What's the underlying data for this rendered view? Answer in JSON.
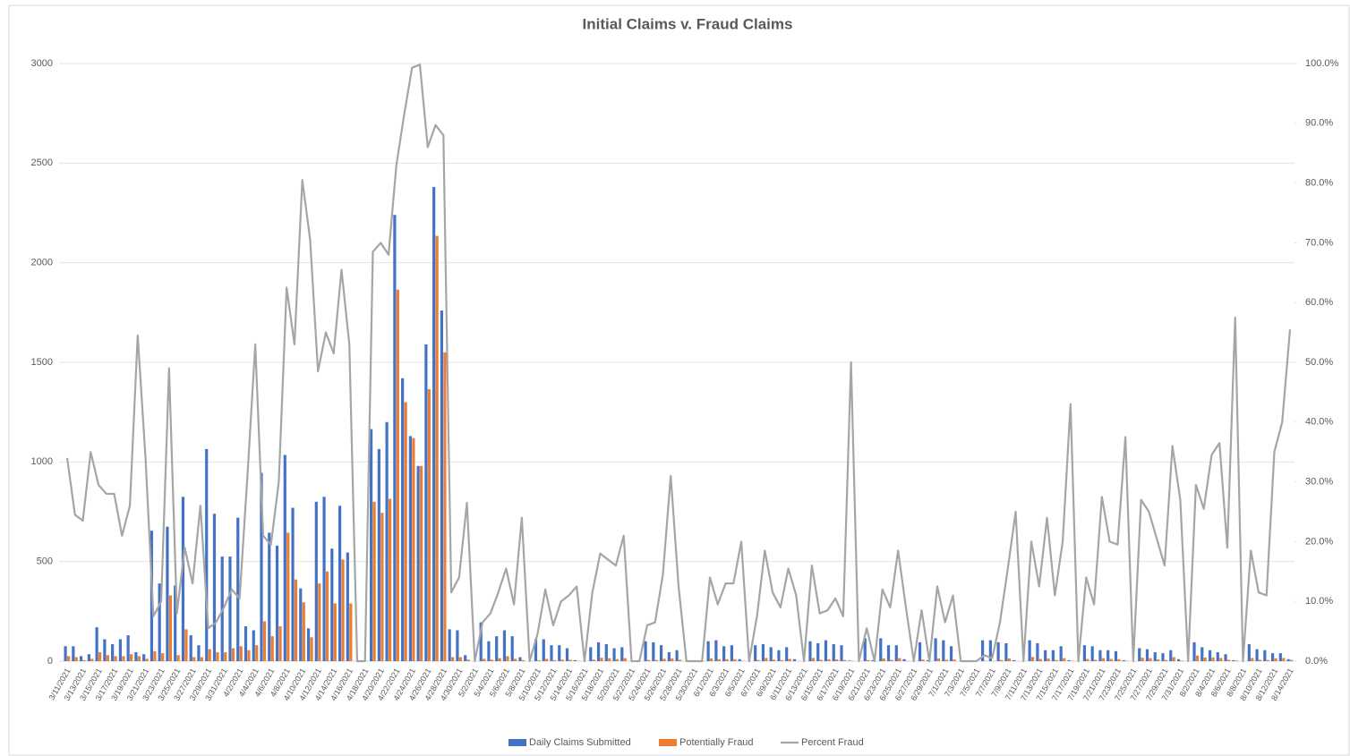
{
  "chart_data": {
    "type": "bar",
    "title": "Initial Claims v. Fraud Claims",
    "categories": [
      "3/11/2021",
      null,
      "3/13/2021",
      null,
      "3/15/2021",
      null,
      "3/17/2021",
      null,
      "3/19/2021",
      null,
      "3/21/2021",
      null,
      "3/23/2021",
      null,
      "3/25/2021",
      null,
      "3/27/2021",
      null,
      "3/29/2021",
      null,
      "3/31/2021",
      null,
      "4/2/2021",
      null,
      "4/4/2021",
      null,
      "4/6/2021",
      null,
      "4/8/2021",
      null,
      "4/10/2021",
      null,
      "4/12/2021",
      null,
      "4/14/2021",
      null,
      "4/16/2021",
      null,
      "4/18/2021",
      null,
      "4/20/2021",
      null,
      "4/22/2021",
      null,
      "4/24/2021",
      null,
      "4/26/2021",
      null,
      "4/28/2021",
      null,
      "4/30/2021",
      null,
      "5/2/2021",
      null,
      "5/4/2021",
      null,
      "5/6/2021",
      null,
      "5/8/2021",
      null,
      "5/10/2021",
      null,
      "5/12/2021",
      null,
      "5/14/2021",
      null,
      "5/16/2021",
      null,
      "5/18/2021",
      null,
      "5/20/2021",
      null,
      "5/22/2021",
      null,
      "5/24/2021",
      null,
      "5/26/2021",
      null,
      "5/28/2021",
      null,
      "5/30/2021",
      null,
      "6/1/2021",
      null,
      "6/3/2021",
      null,
      "6/5/2021",
      null,
      "6/7/2021",
      null,
      "6/9/2021",
      null,
      "6/11/2021",
      null,
      "6/13/2021",
      null,
      "6/15/2021",
      null,
      "6/17/2021",
      null,
      "6/19/2021",
      null,
      "6/21/2021",
      null,
      "6/23/2021",
      null,
      "6/25/2021",
      null,
      "6/27/2021",
      null,
      "6/29/2021",
      null,
      "7/1/2021",
      null,
      "7/3/2021",
      null,
      "7/5/2021",
      null,
      "7/7/2021",
      null,
      "7/9/2021",
      null,
      "7/11/2021",
      null,
      "7/13/2021",
      null,
      "7/15/2021",
      null,
      "7/17/2021",
      null,
      "7/19/2021",
      null,
      "7/21/2021",
      null,
      "7/23/2021",
      null,
      "7/25/2021",
      null,
      "7/27/2021",
      null,
      "7/29/2021",
      null,
      "7/31/2021",
      null,
      "8/2/2021",
      null,
      "8/4/2021",
      null,
      "8/6/2021",
      null,
      "8/8/2021",
      null,
      "8/10/2021",
      null,
      "8/12/2021",
      null,
      "8/14/2021"
    ],
    "series": [
      {
        "name": "Daily Claims Submitted",
        "type": "bar",
        "color": "#4472c4",
        "values": [
          75,
          75,
          25,
          35,
          170,
          110,
          85,
          110,
          130,
          45,
          35,
          655,
          390,
          675,
          380,
          825,
          130,
          80,
          1065,
          740,
          525,
          525,
          720,
          175,
          155,
          945,
          645,
          580,
          1035,
          770,
          365,
          165,
          800,
          825,
          565,
          780,
          545,
          0,
          0,
          1165,
          1065,
          1200,
          2240,
          1420,
          1130,
          980,
          1590,
          2380,
          1760,
          160,
          155,
          30,
          0,
          195,
          100,
          125,
          155,
          125,
          20,
          0,
          110,
          110,
          80,
          80,
          65,
          5,
          0,
          70,
          95,
          85,
          65,
          70,
          0,
          0,
          100,
          95,
          80,
          45,
          55,
          0,
          0,
          0,
          100,
          105,
          75,
          80,
          10,
          0,
          80,
          85,
          70,
          55,
          70,
          10,
          0,
          100,
          90,
          105,
          85,
          80,
          3,
          0,
          115,
          5,
          115,
          80,
          80,
          10,
          0,
          95,
          5,
          115,
          105,
          75,
          0,
          0,
          0,
          105,
          105,
          95,
          90,
          5,
          0,
          105,
          90,
          55,
          55,
          75,
          5,
          0,
          80,
          75,
          55,
          55,
          50,
          5,
          0,
          65,
          60,
          45,
          40,
          55,
          10,
          0,
          95,
          70,
          55,
          45,
          35,
          5,
          0,
          85,
          60,
          55,
          40,
          40,
          10
        ]
      },
      {
        "name": "Potentially Fraud",
        "type": "bar",
        "color": "#ed7d31",
        "values": [
          25,
          20,
          5,
          12,
          45,
          30,
          25,
          25,
          35,
          25,
          12,
          50,
          40,
          330,
          30,
          160,
          20,
          20,
          60,
          45,
          45,
          65,
          75,
          55,
          80,
          200,
          125,
          175,
          645,
          410,
          295,
          120,
          390,
          450,
          290,
          510,
          290,
          0,
          0,
          800,
          745,
          815,
          1865,
          1300,
          1120,
          980,
          1365,
          2135,
          1550,
          20,
          20,
          8,
          0,
          12,
          8,
          15,
          25,
          12,
          5,
          0,
          5,
          12,
          5,
          8,
          7,
          1,
          0,
          8,
          17,
          15,
          10,
          15,
          0,
          0,
          6,
          6,
          12,
          14,
          7,
          0,
          0,
          0,
          14,
          10,
          10,
          10,
          2,
          0,
          6,
          16,
          8,
          5,
          11,
          1,
          0,
          16,
          7,
          9,
          9,
          6,
          1.5,
          0,
          6,
          0,
          14,
          7,
          15,
          1,
          0,
          8,
          0,
          14,
          7,
          8,
          0,
          0,
          0,
          1,
          1,
          6,
          14,
          1,
          0,
          21,
          11,
          13,
          6,
          15,
          2,
          0,
          11,
          7,
          15,
          11,
          10,
          2,
          0,
          17,
          15,
          9,
          6,
          20,
          3,
          0,
          28,
          18,
          19,
          16,
          7,
          3,
          0,
          16,
          7,
          6,
          14,
          16,
          6
        ]
      },
      {
        "name": "Percent Fraud",
        "type": "line",
        "axis": "y2",
        "color": "#a5a5a5",
        "values": [
          34,
          24.5,
          23.5,
          35,
          29.5,
          28,
          28,
          21,
          26,
          54.5,
          34,
          7.5,
          10,
          49,
          8,
          19,
          13,
          26,
          5.5,
          6.5,
          9,
          12,
          10.5,
          31,
          53,
          21,
          19.5,
          30,
          62.5,
          53,
          80.5,
          70.5,
          48.5,
          55,
          51.5,
          65.5,
          53,
          0,
          0,
          68.5,
          70,
          68,
          83,
          91.5,
          99.3,
          99.8,
          86,
          89.7,
          88,
          11.5,
          14,
          26.5,
          0,
          6.5,
          8,
          11.5,
          15.5,
          9.5,
          24,
          0,
          4.5,
          12,
          6,
          10,
          11,
          12.5,
          0,
          11.5,
          18,
          17,
          16,
          21,
          0,
          0,
          6,
          6.5,
          14.5,
          31,
          12.5,
          0,
          0,
          0,
          14,
          9.5,
          13,
          13,
          20,
          0,
          7.5,
          18.5,
          11.5,
          9,
          15.5,
          11,
          0,
          16,
          8,
          8.5,
          10.5,
          7.5,
          50,
          0,
          5.5,
          0,
          12,
          9,
          18.5,
          9,
          0,
          8.5,
          0,
          12.5,
          6.5,
          11,
          0,
          0,
          0,
          1,
          0.5,
          6.5,
          15.5,
          25,
          0,
          20,
          12.5,
          24,
          11,
          20,
          43,
          0,
          14,
          9.5,
          27.5,
          20,
          19.5,
          37.5,
          0,
          27,
          25,
          20.5,
          16,
          36,
          27,
          0,
          29.5,
          25.5,
          34.5,
          36.5,
          19,
          57.5,
          0,
          18.5,
          11.5,
          11,
          35,
          40,
          55.5
        ]
      }
    ],
    "ylim": [
      0,
      3000
    ],
    "yticks": [
      0,
      500,
      1000,
      1500,
      2000,
      2500,
      3000
    ],
    "y2lim": [
      0,
      100
    ],
    "y2ticks": [
      {
        "value": 0,
        "label": "0.0%"
      },
      {
        "value": 10,
        "label": "10.0%"
      },
      {
        "value": 20,
        "label": "20.0%"
      },
      {
        "value": 30,
        "label": "30.0%"
      },
      {
        "value": 40,
        "label": "40.0%"
      },
      {
        "value": 50,
        "label": "50.0%"
      },
      {
        "value": 60,
        "label": "60.0%"
      },
      {
        "value": 70,
        "label": "70.0%"
      },
      {
        "value": 80,
        "label": "80.0%"
      },
      {
        "value": 90,
        "label": "90.0%"
      },
      {
        "value": 100,
        "label": "100.0%"
      }
    ],
    "grid": true,
    "legend": "bottom"
  }
}
